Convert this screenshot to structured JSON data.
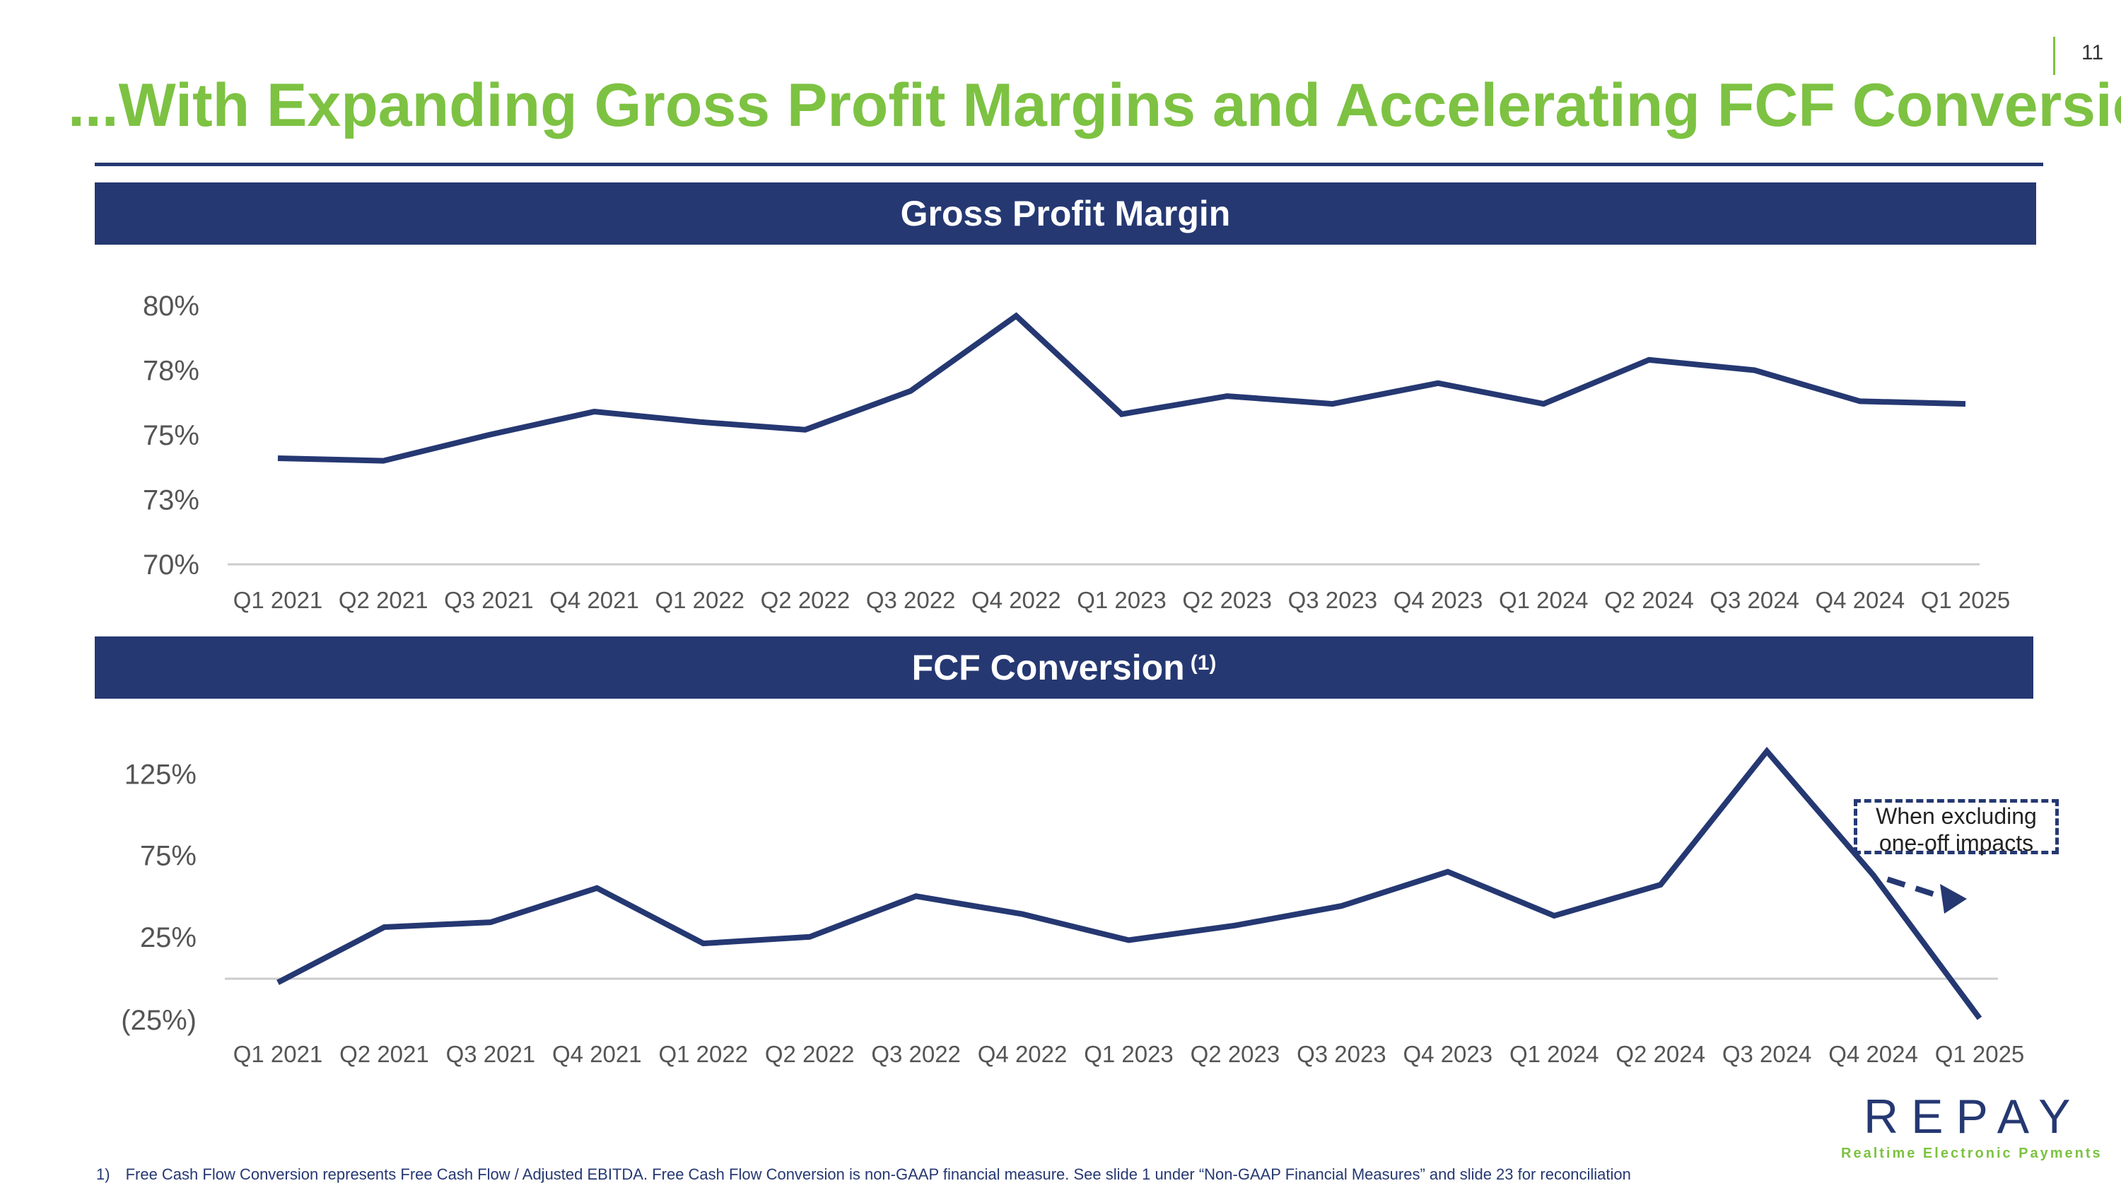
{
  "page_number": "11",
  "title": "...With Expanding Gross Profit Margins and Accelerating FCF Conversion",
  "colors": {
    "accent_green": "#7dc242",
    "navy": "#253872"
  },
  "charts_header": {
    "gross_profit": "Gross Profit Margin",
    "fcf": "FCF Conversion",
    "fcf_superscript": "(1)"
  },
  "annotation": {
    "line1": "When excluding",
    "line2": "one-off impacts"
  },
  "footnote": {
    "number": "1)",
    "text": "Free Cash Flow Conversion represents Free Cash Flow / Adjusted EBITDA. Free Cash Flow Conversion is non-GAAP financial measure. See slide 1 under “Non-GAAP Financial Measures” and slide 23 for reconciliation"
  },
  "logo": {
    "word": "REPAY",
    "tagline": "Realtime Electronic Payments"
  },
  "chart_data": [
    {
      "type": "line",
      "title": "Gross Profit Margin",
      "categories": [
        "Q1 2021",
        "Q2 2021",
        "Q3 2021",
        "Q4 2021",
        "Q1 2022",
        "Q2 2022",
        "Q3 2022",
        "Q4 2022",
        "Q1 2023",
        "Q2 2023",
        "Q3 2023",
        "Q4 2023",
        "Q1 2024",
        "Q2 2024",
        "Q3 2024",
        "Q4 2024",
        "Q1 2025"
      ],
      "values": [
        74.1,
        74.0,
        75.0,
        75.9,
        75.5,
        75.2,
        76.7,
        79.6,
        75.8,
        76.5,
        76.2,
        77.0,
        76.2,
        77.9,
        77.5,
        76.3,
        76.2
      ],
      "y_ticks": [
        "70%",
        "73%",
        "75%",
        "78%",
        "80%"
      ],
      "ylim": [
        70,
        80
      ],
      "xlabel": "",
      "ylabel": ""
    },
    {
      "type": "line",
      "title": "FCF Conversion",
      "categories": [
        "Q1 2021",
        "Q2 2021",
        "Q3 2021",
        "Q4 2021",
        "Q1 2022",
        "Q2 2022",
        "Q3 2022",
        "Q4 2022",
        "Q1 2023",
        "Q2 2023",
        "Q3 2023",
        "Q4 2023",
        "Q1 2024",
        "Q2 2024",
        "Q3 2024",
        "Q4 2024",
        "Q1 2025"
      ],
      "values": [
        -3,
        31,
        34,
        55,
        21,
        25,
        50,
        39,
        23,
        32,
        44,
        65,
        38,
        57,
        139,
        63,
        -25
      ],
      "excluding_one_off": {
        "from": "Q4 2024",
        "to": "Q1 2025",
        "from_value": 63,
        "to_value": 50
      },
      "y_ticks": [
        "(25%)",
        "25%",
        "75%",
        "125%"
      ],
      "ylim": [
        -25,
        140
      ],
      "xlabel": "",
      "ylabel": ""
    }
  ]
}
